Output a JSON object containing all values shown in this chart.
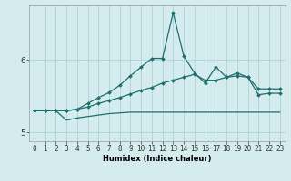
{
  "xlabel": "Humidex (Indice chaleur)",
  "bg_color": "#d4ecee",
  "grid_color": "#aed4d8",
  "line_color": "#1e6e6e",
  "x": [
    0,
    1,
    2,
    3,
    4,
    5,
    6,
    7,
    8,
    9,
    10,
    11,
    12,
    13,
    14,
    15,
    16,
    17,
    18,
    19,
    20,
    21,
    22,
    23
  ],
  "line_flat": [
    5.3,
    5.3,
    5.3,
    5.17,
    5.2,
    5.22,
    5.24,
    5.26,
    5.27,
    5.28,
    5.28,
    5.28,
    5.28,
    5.28,
    5.28,
    5.28,
    5.28,
    5.28,
    5.28,
    5.28,
    5.28,
    5.28,
    5.28,
    5.28
  ],
  "line_mid": [
    5.3,
    5.3,
    5.3,
    5.3,
    5.32,
    5.35,
    5.4,
    5.44,
    5.48,
    5.53,
    5.58,
    5.62,
    5.68,
    5.72,
    5.76,
    5.8,
    5.72,
    5.72,
    5.76,
    5.78,
    5.76,
    5.6,
    5.6,
    5.6
  ],
  "line_top": [
    5.3,
    5.3,
    5.3,
    5.3,
    5.32,
    5.4,
    5.48,
    5.55,
    5.65,
    5.78,
    5.9,
    6.02,
    6.02,
    6.65,
    6.05,
    5.82,
    5.68,
    5.9,
    5.76,
    5.82,
    5.76,
    5.52,
    5.54,
    5.54
  ],
  "ylim": [
    4.88,
    6.75
  ],
  "yticks": [
    5,
    6
  ],
  "xticks": [
    0,
    1,
    2,
    3,
    4,
    5,
    6,
    7,
    8,
    9,
    10,
    11,
    12,
    13,
    14,
    15,
    16,
    17,
    18,
    19,
    20,
    21,
    22,
    23
  ],
  "tick_fontsize": 5.5,
  "xlabel_fontsize": 6.0,
  "ylabel_fontsize": 6.5
}
